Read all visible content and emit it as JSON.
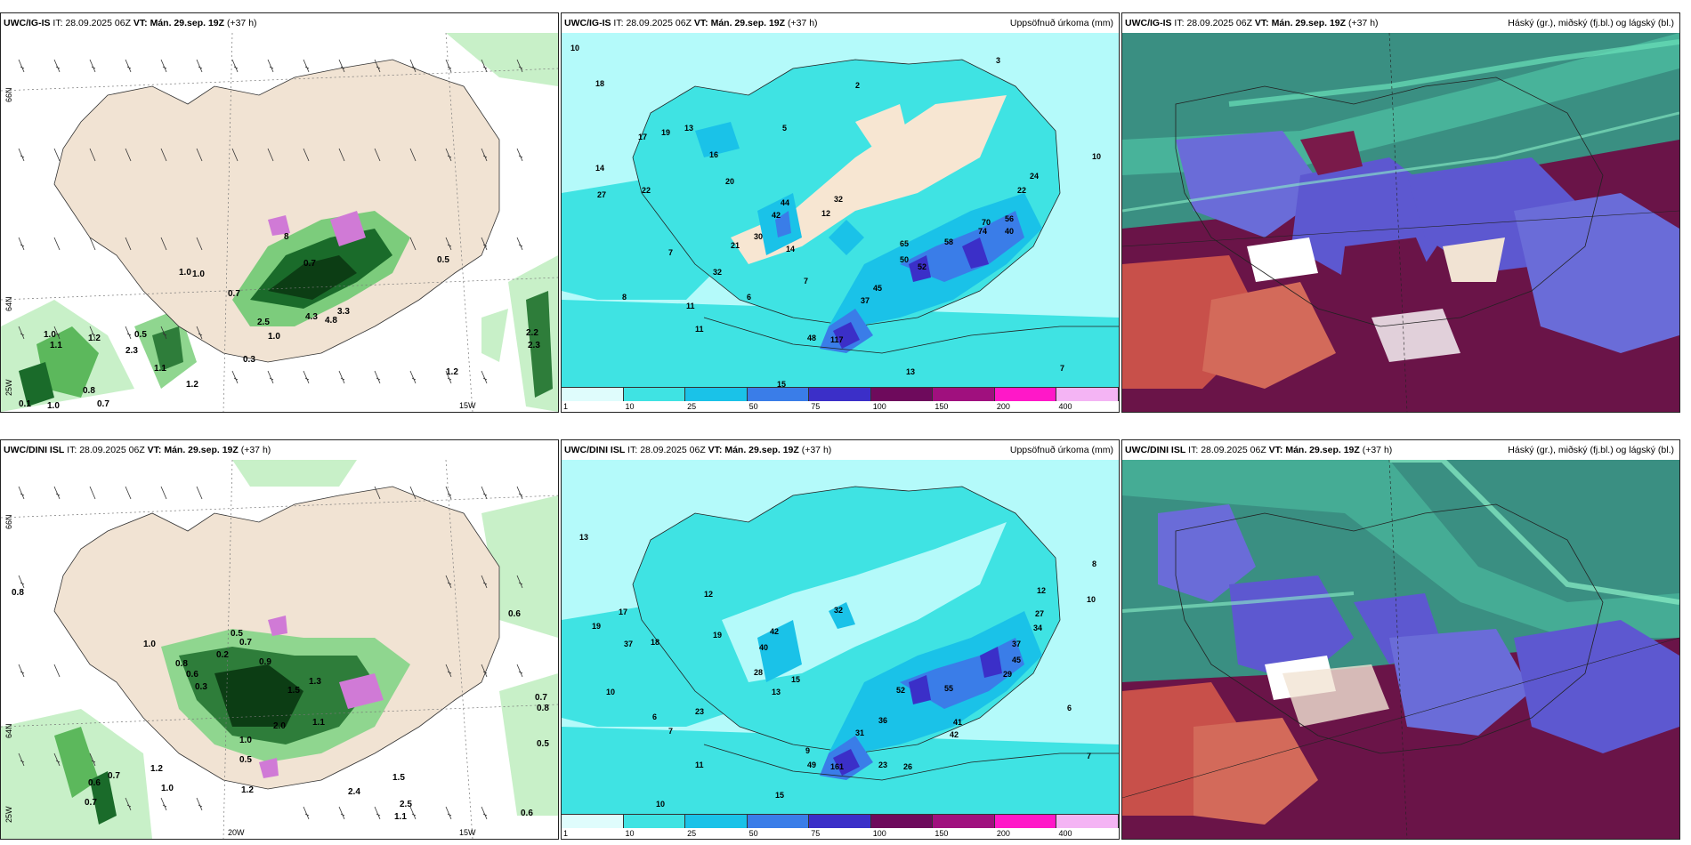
{
  "panels": {
    "top_left": {
      "model": "UWC/IG-IS",
      "it_label": "IT:",
      "it_value": "28.09.2025 06Z",
      "vt_label": "VT:",
      "vt_value": "Mán. 29.sep. 19Z",
      "lead": "(+37 h)",
      "right": ""
    },
    "top_mid": {
      "model": "UWC/IG-IS",
      "it_label": "IT:",
      "it_value": "28.09.2025 06Z",
      "vt_label": "VT:",
      "vt_value": "Mán. 29.sep. 19Z",
      "lead": "(+37 h)",
      "right": "Uppsöfnuð úrkoma (mm)"
    },
    "top_right": {
      "model": "UWC/IG-IS",
      "it_label": "IT:",
      "it_value": "28.09.2025 06Z",
      "vt_label": "VT:",
      "vt_value": "Mán. 29.sep. 19Z",
      "lead": "(+37 h)",
      "right": "Háský (gr.), miðský (fj.bl.) og lágský (bl.)"
    },
    "bottom_left": {
      "model": "UWC/DINI ISL",
      "it_label": "IT:",
      "it_value": "28.09.2025 06Z",
      "vt_label": "VT:",
      "vt_value": "Mán. 29.sep. 19Z",
      "lead": "(+37 h)",
      "right": ""
    },
    "bottom_mid": {
      "model": "UWC/DINI ISL",
      "it_label": "IT:",
      "it_value": "28.09.2025 06Z",
      "vt_label": "VT:",
      "vt_value": "Mán. 29.sep. 19Z",
      "lead": "(+37 h)",
      "right": "Uppsöfnuð úrkoma (mm)"
    },
    "bottom_right": {
      "model": "UWC/DINI ISL",
      "it_label": "IT:",
      "it_value": "28.09.2025 06Z",
      "vt_label": "VT:",
      "vt_value": "Mán. 29.sep. 19Z",
      "lead": "(+37 h)",
      "right": "Háský (gr.), miðský (fj.bl.) og lágský (bl.)"
    }
  },
  "colorbar": {
    "labels": [
      "1",
      "10",
      "25",
      "50",
      "75",
      "100",
      "150",
      "200",
      "400"
    ],
    "colors": [
      "#dffcfc",
      "#3fe3e3",
      "#1ac2e8",
      "#3a7de8",
      "#3b2fc8",
      "#6e0a5c",
      "#a0107e",
      "#ff18c8",
      "#f4b4f4"
    ]
  },
  "axes": {
    "lat_66": "66N",
    "lat_64": "64N",
    "lon_20": "20W",
    "lon_15": "15W",
    "lon_25": "25W"
  },
  "values": {
    "tl": [
      "8",
      "0.7",
      "0.5",
      "1.0",
      "1.0",
      "0.7",
      "3.3",
      "4.3",
      "4.8",
      "2.5",
      "1.0",
      "0.5",
      "1.0",
      "1.1",
      "1.2",
      "2.3",
      "1.1",
      "0.8",
      "0.7",
      "1.0",
      "1.2",
      "2.2",
      "2.3",
      "1.2",
      "0.3",
      "0.1"
    ],
    "tm": [
      "10",
      "18",
      "14",
      "17",
      "19",
      "13",
      "16",
      "20",
      "22",
      "27",
      "44",
      "42",
      "30",
      "21",
      "32",
      "32",
      "14",
      "12",
      "8",
      "11",
      "11",
      "7",
      "7",
      "6",
      "117",
      "48",
      "52",
      "45",
      "37",
      "65",
      "58",
      "50",
      "70",
      "74",
      "56",
      "40",
      "24",
      "22",
      "10",
      "3",
      "2",
      "5",
      "13",
      "15",
      "7"
    ],
    "bl": [
      "0.8",
      "1.0",
      "0.8",
      "0.6",
      "0.3",
      "0.5",
      "0.7",
      "0.2",
      "0.9",
      "1.3",
      "1.5",
      "1.1",
      "2.0",
      "1.0",
      "1.2",
      "0.7",
      "0.5",
      "0.6",
      "0.7",
      "1.0",
      "1.2",
      "1.5",
      "2.4",
      "2.5",
      "1.1",
      "0.6",
      "0.7",
      "0.8",
      "0.5",
      "0.6"
    ],
    "bm": [
      "13",
      "19",
      "17",
      "37",
      "18",
      "19",
      "12",
      "10",
      "42",
      "40",
      "32",
      "28",
      "15",
      "13",
      "23",
      "7",
      "9",
      "6",
      "10",
      "15",
      "161",
      "49",
      "31",
      "23",
      "26",
      "36",
      "52",
      "55",
      "41",
      "42",
      "29",
      "45",
      "37",
      "34",
      "27",
      "12",
      "10",
      "8",
      "7",
      "6",
      "11"
    ]
  }
}
